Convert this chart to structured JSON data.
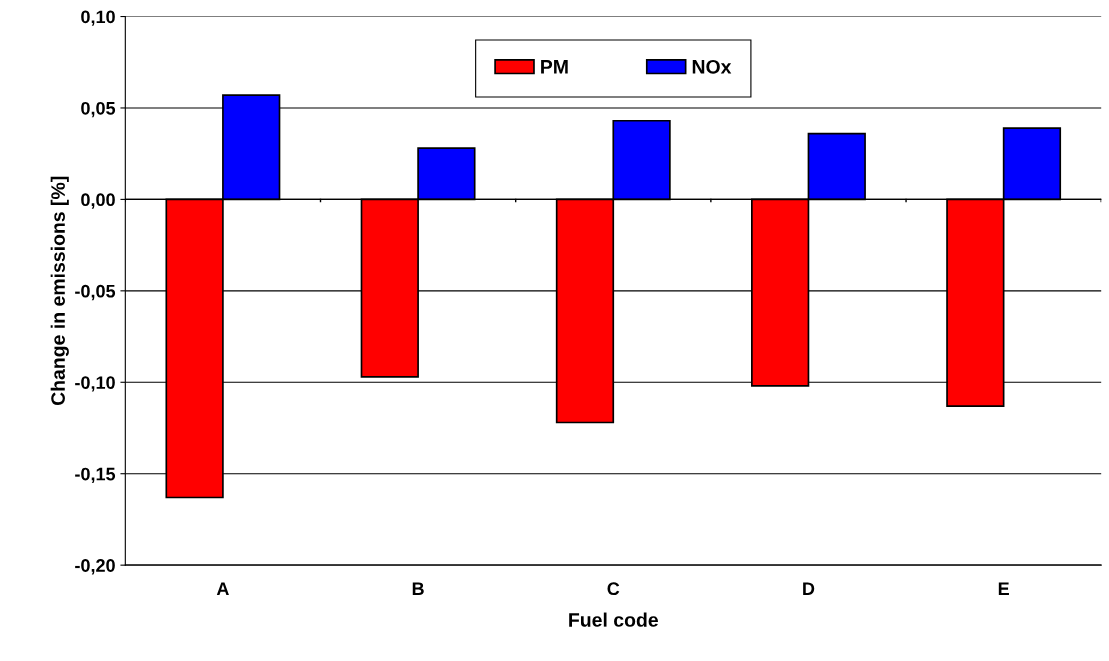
{
  "chart_data": {
    "type": "bar",
    "xlabel": "Fuel code",
    "ylabel": "Change in emissions [%]",
    "categories": [
      "A",
      "B",
      "C",
      "D",
      "E"
    ],
    "series": [
      {
        "name": "PM",
        "color": "#ff0000",
        "values": [
          -0.163,
          -0.097,
          -0.122,
          -0.102,
          -0.113
        ]
      },
      {
        "name": "NOx",
        "color": "#0000ff",
        "values": [
          0.057,
          0.028,
          0.043,
          0.036,
          0.039
        ]
      }
    ],
    "ylim": [
      -0.2,
      0.1
    ],
    "yticks": [
      {
        "value": -0.2,
        "label": "-0,20"
      },
      {
        "value": -0.15,
        "label": "-0,15"
      },
      {
        "value": -0.1,
        "label": "-0,10"
      },
      {
        "value": -0.05,
        "label": "-0,05"
      },
      {
        "value": 0,
        "label": "0,00"
      },
      {
        "value": 0.05,
        "label": "0,05"
      },
      {
        "value": 0.1,
        "label": "0,10"
      }
    ],
    "grid": "y",
    "legend": "top"
  }
}
